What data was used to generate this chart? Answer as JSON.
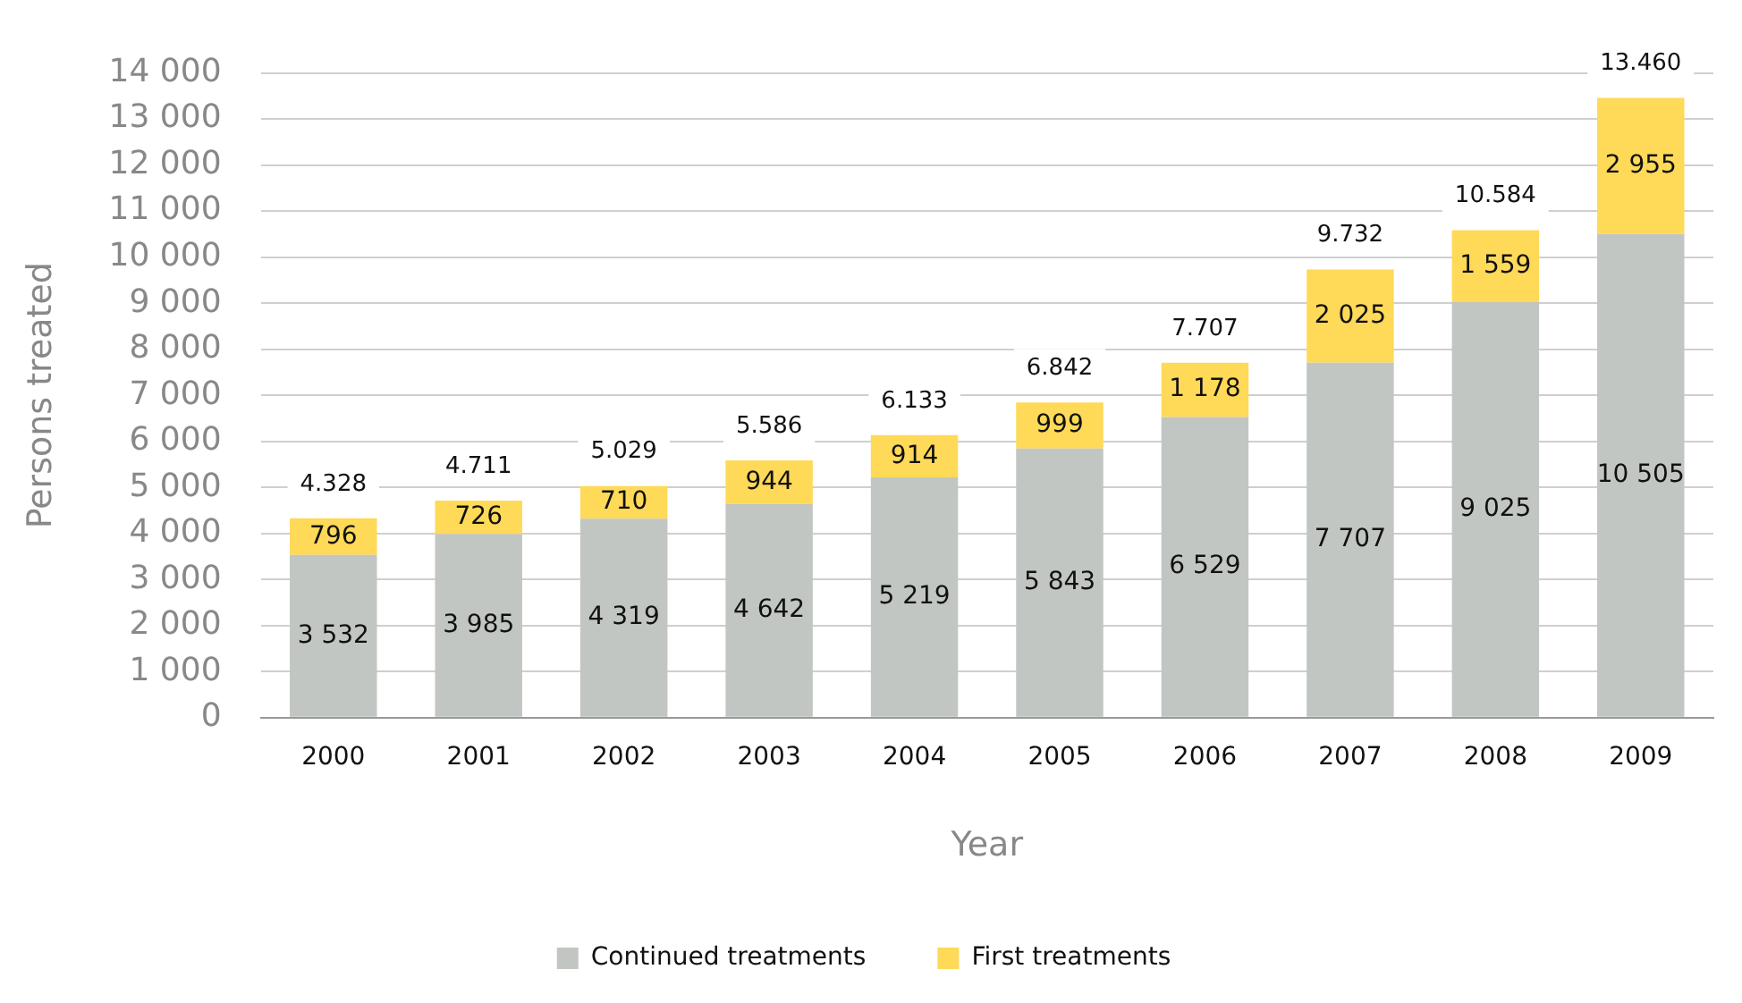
{
  "chart_data": {
    "type": "bar",
    "stacked": true,
    "xlabel": "Year",
    "ylabel": "Persons treated",
    "categories": [
      "2000",
      "2001",
      "2002",
      "2003",
      "2004",
      "2005",
      "2006",
      "2007",
      "2008",
      "2009"
    ],
    "series": [
      {
        "name": "Continued treatments",
        "color": "#c1c6c2",
        "values": [
          3532,
          3985,
          4319,
          4642,
          5219,
          5843,
          6529,
          7707,
          9025,
          10505
        ],
        "value_labels": [
          "3 532",
          "3 985",
          "4 319",
          "4 642",
          "5 219",
          "5 843",
          "6 529",
          "7 707",
          "9 025",
          "10 505"
        ]
      },
      {
        "name": "First treatments",
        "color": "#ffd958",
        "values": [
          796,
          726,
          710,
          944,
          914,
          999,
          1178,
          2025,
          1559,
          2955
        ],
        "value_labels": [
          "796",
          "726",
          "710",
          "944",
          "914",
          "999",
          "1 178",
          "2 025",
          "1 559",
          "2 955"
        ]
      }
    ],
    "totals": [
      "4.328",
      "4.711",
      "5.029",
      "5.586",
      "6.133",
      "6.842",
      "7.707",
      "9.732",
      "10.584",
      "13.460"
    ],
    "ylim": [
      0,
      14000
    ],
    "yticks": [
      0,
      {
        "value": 1000,
        "label": "1 000"
      },
      {
        "value": 2000,
        "label": "2 000"
      },
      {
        "value": 3000,
        "label": "3 000"
      },
      {
        "value": 4000,
        "label": "4 000"
      },
      {
        "value": 5000,
        "label": "5 000"
      },
      {
        "value": 6000,
        "label": "6 000"
      },
      {
        "value": 7000,
        "label": "7 000"
      },
      {
        "value": 8000,
        "label": "8 000"
      },
      {
        "value": 9000,
        "label": "9 000"
      },
      {
        "value": 10000,
        "label": "10 000"
      },
      {
        "value": 11000,
        "label": "11 000"
      },
      {
        "value": 12000,
        "label": "12 000"
      },
      {
        "value": 13000,
        "label": "13 000"
      },
      {
        "value": 14000,
        "label": "14 000"
      }
    ],
    "grid": "y",
    "legend": "bottom"
  }
}
